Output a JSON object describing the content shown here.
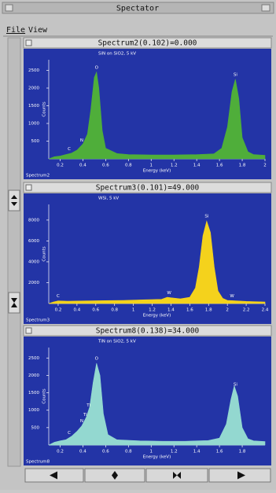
{
  "window": {
    "title": "Spectator"
  },
  "menu": [
    "File",
    "View"
  ],
  "panels": [
    {
      "title": "Spectrum2(0.102)=0.000",
      "subtitle": "SiN on SiO2, 5 kV",
      "ylabel": "Counts",
      "xlabel": "Energy (keV)",
      "footer": "Spectrum2",
      "color": "#4fae3a",
      "xlim": [
        0.1,
        2.0
      ],
      "xticks": [
        0.2,
        0.4,
        0.6,
        0.8,
        1,
        1.2,
        1.4,
        1.6,
        1.8,
        2
      ],
      "ylim": [
        0,
        2800
      ],
      "yticks": [
        500,
        1000,
        1500,
        2000,
        2500
      ],
      "x": [
        0.1,
        0.15,
        0.2,
        0.25,
        0.3,
        0.35,
        0.4,
        0.44,
        0.47,
        0.5,
        0.52,
        0.54,
        0.57,
        0.6,
        0.7,
        0.8,
        1.0,
        1.2,
        1.4,
        1.55,
        1.62,
        1.67,
        1.71,
        1.74,
        1.77,
        1.8,
        1.85,
        1.9,
        2.0
      ],
      "values": [
        0,
        60,
        80,
        120,
        160,
        250,
        420,
        700,
        1400,
        2300,
        2450,
        2000,
        800,
        300,
        150,
        120,
        110,
        110,
        120,
        140,
        300,
        900,
        1900,
        2250,
        1700,
        600,
        200,
        120,
        100
      ],
      "peaks": [
        {
          "label": "C",
          "x": 0.28
        },
        {
          "label": "N",
          "x": 0.39
        },
        {
          "label": "O",
          "x": 0.52
        },
        {
          "label": "Si",
          "x": 1.74
        }
      ]
    },
    {
      "title": "Spectrum3(0.101)=49.000",
      "subtitle": "WSi, 5 kV",
      "ylabel": "Counts",
      "xlabel": "Energy (keV)",
      "footer": "Spectrum3",
      "color": "#f4d21c",
      "xlim": [
        0.1,
        2.4
      ],
      "xticks": [
        0.2,
        0.4,
        0.6,
        0.8,
        1,
        1.2,
        1.4,
        1.6,
        1.8,
        2,
        2.2,
        2.4
      ],
      "ylim": [
        0,
        9500
      ],
      "yticks": [
        2000,
        4000,
        6000,
        8000
      ],
      "x": [
        0.1,
        0.15,
        0.2,
        0.3,
        0.5,
        0.7,
        0.9,
        1.1,
        1.3,
        1.36,
        1.4,
        1.5,
        1.6,
        1.66,
        1.7,
        1.74,
        1.78,
        1.82,
        1.86,
        1.9,
        1.95,
        2.0,
        2.1,
        2.2,
        2.4
      ],
      "values": [
        0,
        150,
        250,
        220,
        250,
        280,
        300,
        350,
        400,
        600,
        550,
        450,
        600,
        1500,
        3500,
        6500,
        7900,
        6800,
        3500,
        1200,
        500,
        300,
        250,
        200,
        150
      ],
      "peaks": [
        {
          "label": "C",
          "x": 0.2
        },
        {
          "label": "W",
          "x": 1.38
        },
        {
          "label": "Si",
          "x": 1.78
        },
        {
          "label": "W",
          "x": 2.05
        }
      ]
    },
    {
      "title": "Spectrum8(0.138)=34.000",
      "subtitle": "TiN on SiO2, 5 kV",
      "ylabel": "Counts",
      "xlabel": "Energy (keV)",
      "footer": "Spectrum8",
      "color": "#93d8d0",
      "xlim": [
        0.1,
        2.0
      ],
      "xticks": [
        0.2,
        0.4,
        0.6,
        0.8,
        1,
        1.2,
        1.4,
        1.6,
        1.8
      ],
      "ylim": [
        0,
        2800
      ],
      "yticks": [
        500,
        1000,
        1500,
        2000,
        2500
      ],
      "x": [
        0.1,
        0.15,
        0.2,
        0.25,
        0.3,
        0.35,
        0.39,
        0.43,
        0.46,
        0.49,
        0.52,
        0.55,
        0.58,
        0.62,
        0.7,
        0.9,
        1.1,
        1.3,
        1.5,
        1.6,
        1.66,
        1.7,
        1.73,
        1.76,
        1.8,
        1.85,
        1.9,
        2.0
      ],
      "values": [
        0,
        80,
        120,
        150,
        250,
        400,
        550,
        800,
        1100,
        1800,
        2350,
        2000,
        900,
        300,
        150,
        120,
        110,
        110,
        130,
        200,
        600,
        1300,
        1700,
        1400,
        500,
        180,
        120,
        100
      ],
      "peaks": [
        {
          "label": "C",
          "x": 0.28
        },
        {
          "label": "N",
          "x": 0.39
        },
        {
          "label": "Ti",
          "x": 0.42
        },
        {
          "label": "Ti",
          "x": 0.45
        },
        {
          "label": "O",
          "x": 0.52
        },
        {
          "label": "Si",
          "x": 1.74
        }
      ]
    }
  ]
}
